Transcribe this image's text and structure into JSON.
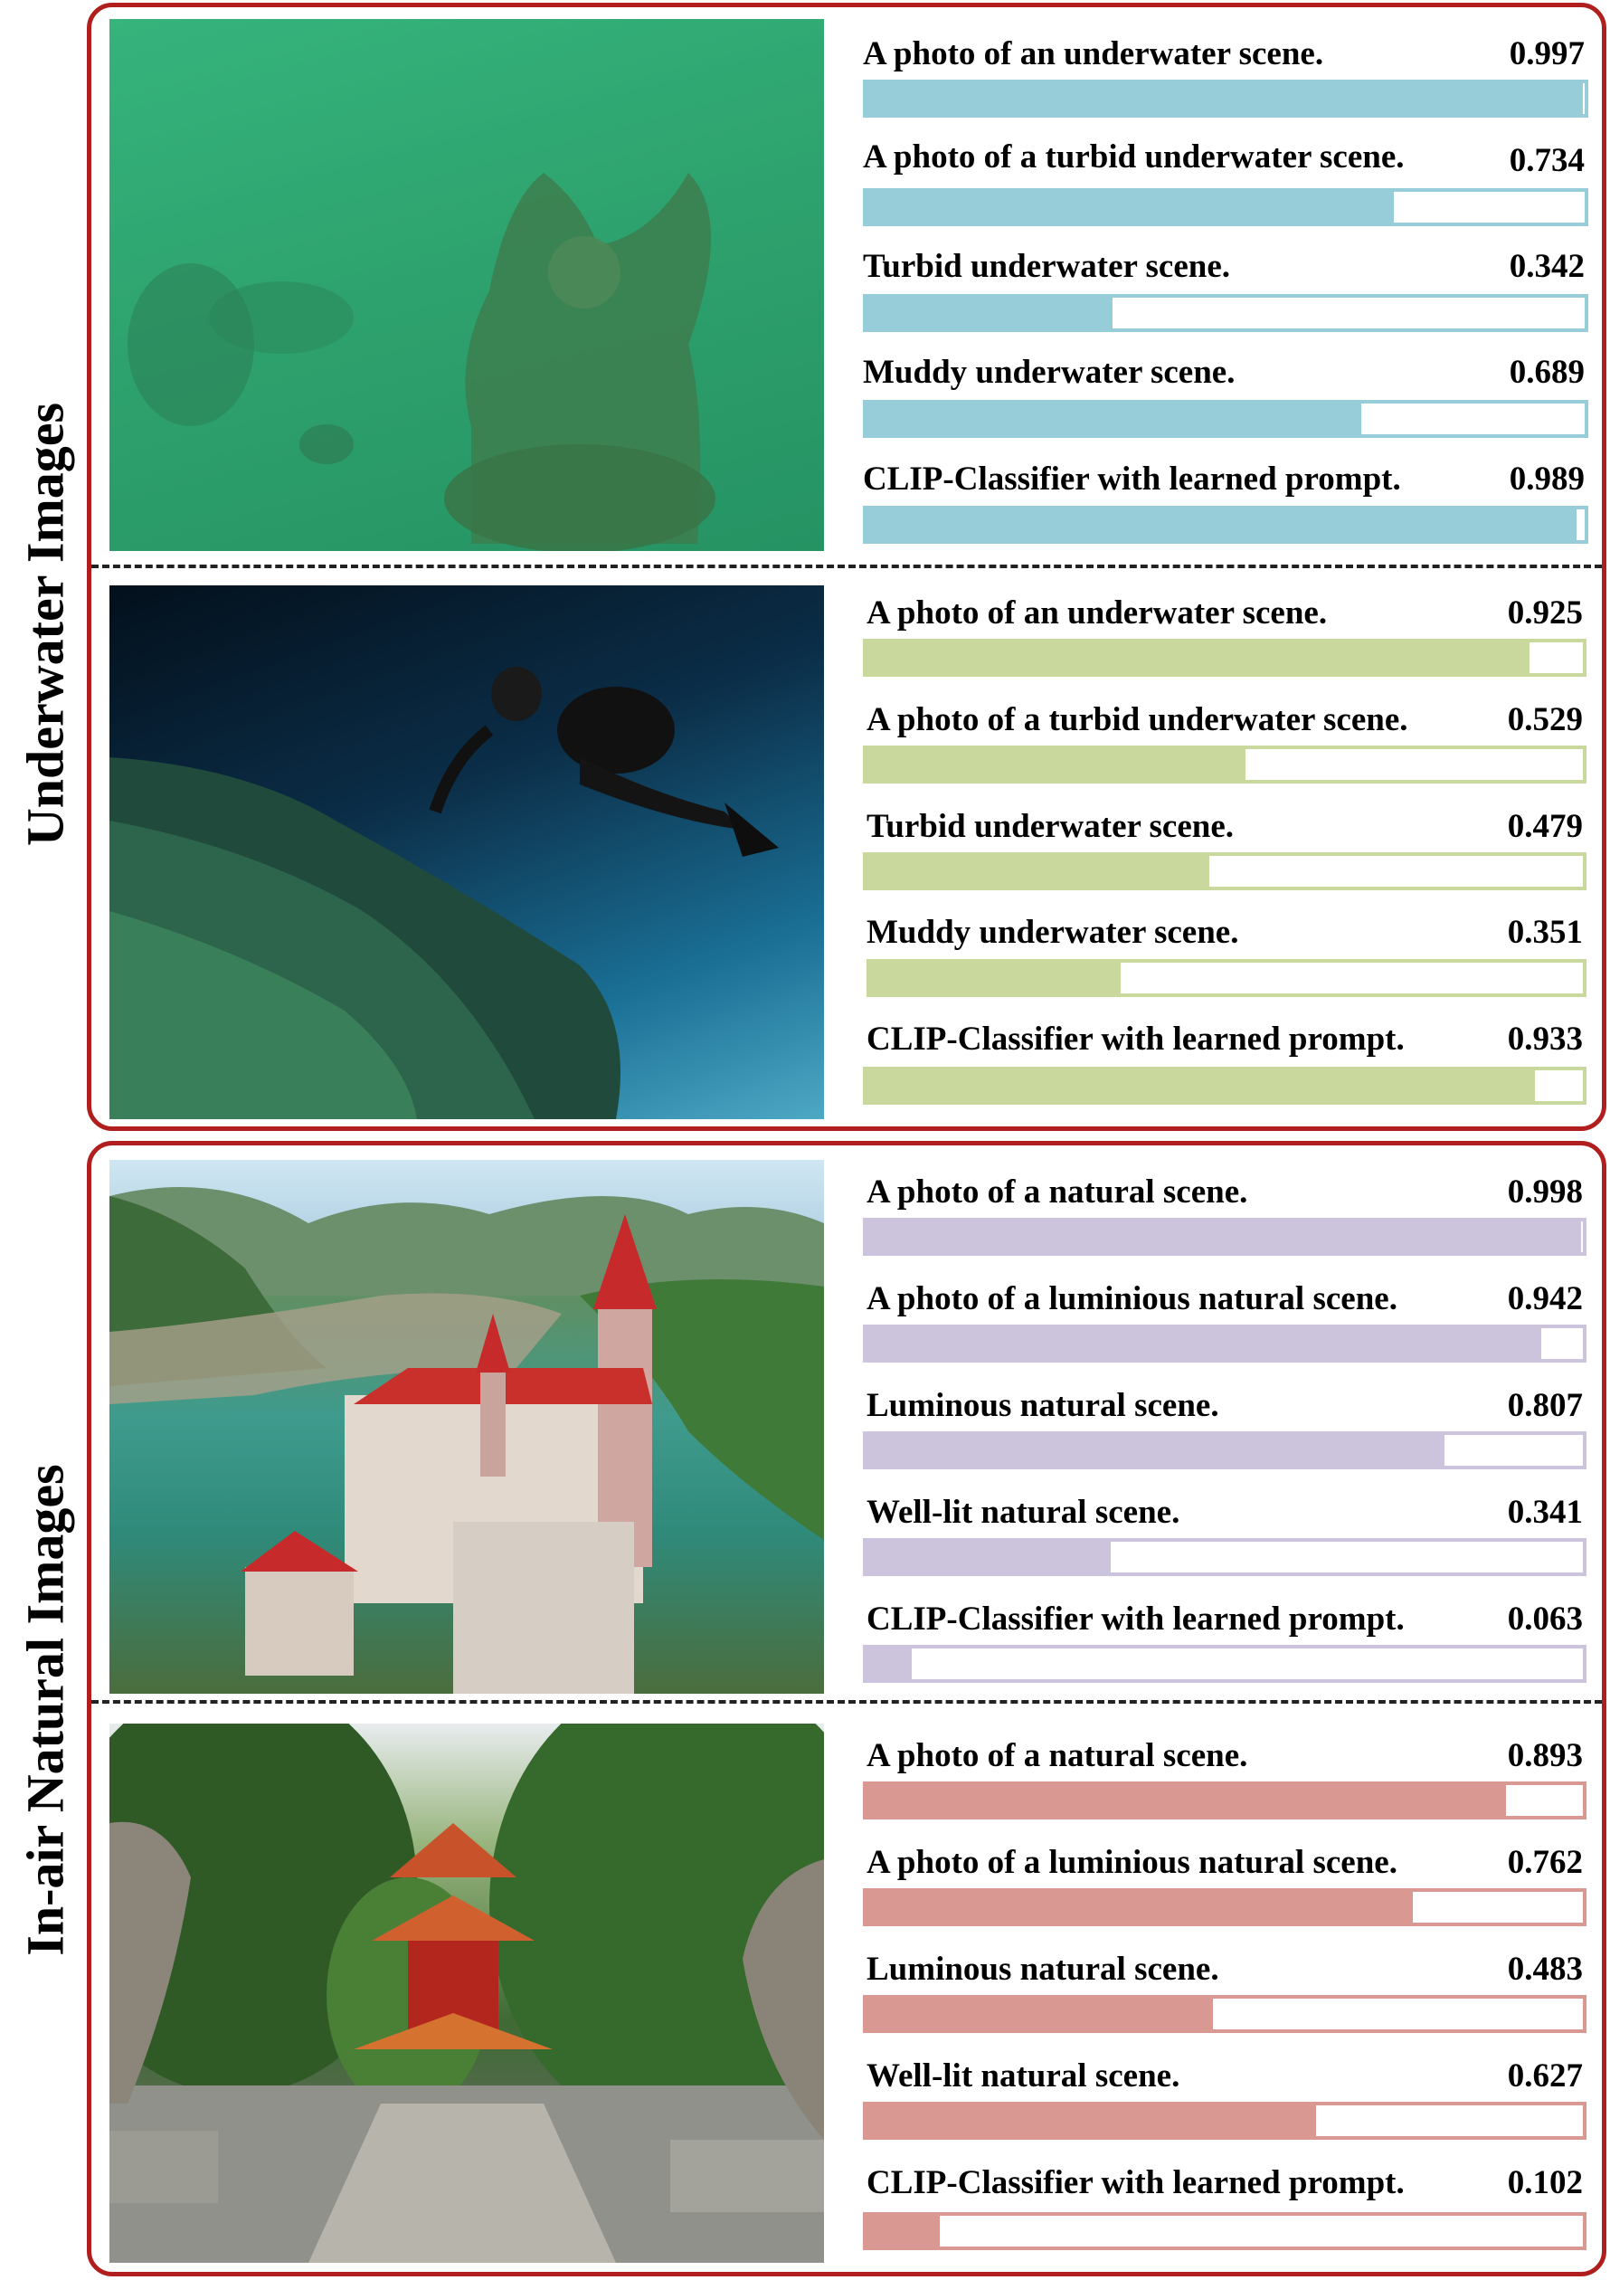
{
  "chart_data": {
    "type": "bar",
    "orientation": "horizontal",
    "xlim": [
      0,
      1
    ],
    "groups": [
      {
        "title": "Underwater Images",
        "panels": [
          {
            "image": "turbid-green-underwater-statue",
            "color": "#96cdd9",
            "bars": [
              {
                "label": "A photo of an underwater scene.",
                "value": 0.997,
                "value_label": "0.997"
              },
              {
                "label": "A photo of a turbid underwater scene.",
                "value": 0.734,
                "value_label": "0.734"
              },
              {
                "label": "Turbid underwater scene.",
                "value": 0.342,
                "value_label": "0.342"
              },
              {
                "label": "Muddy underwater scene.",
                "value": 0.689,
                "value_label": "0.689"
              },
              {
                "label": "CLIP-Classifier with learned prompt.",
                "value": 0.989,
                "value_label": "0.989"
              }
            ]
          },
          {
            "image": "scuba-diver-underwater",
            "color": "#c9d99d",
            "bars": [
              {
                "label": "A photo of an underwater scene.",
                "value": 0.925,
                "value_label": "0.925"
              },
              {
                "label": "A photo of a turbid underwater scene.",
                "value": 0.529,
                "value_label": "0.529"
              },
              {
                "label": "Turbid underwater scene.",
                "value": 0.479,
                "value_label": "0.479"
              },
              {
                "label": "Muddy underwater scene.",
                "value": 0.351,
                "value_label": "0.351"
              },
              {
                "label": "CLIP-Classifier with learned prompt.",
                "value": 0.933,
                "value_label": "0.933"
              }
            ]
          }
        ]
      },
      {
        "title": "In-air Natural Images",
        "panels": [
          {
            "image": "castle-on-lake-aerial",
            "color": "#ccc3dd",
            "bars": [
              {
                "label": "A photo of a natural scene.",
                "value": 0.998,
                "value_label": "0.998"
              },
              {
                "label": "A photo of a luminious natural scene.",
                "value": 0.942,
                "value_label": "0.942"
              },
              {
                "label": "Luminous natural scene.",
                "value": 0.807,
                "value_label": "0.807"
              },
              {
                "label": "Well-lit natural scene.",
                "value": 0.341,
                "value_label": "0.341"
              },
              {
                "label": "CLIP-Classifier with learned prompt.",
                "value": 0.063,
                "value_label": "0.063"
              }
            ]
          },
          {
            "image": "pagoda-in-forest",
            "color": "#da9893",
            "bars": [
              {
                "label": "A photo of a natural scene.",
                "value": 0.893,
                "value_label": "0.893"
              },
              {
                "label": "A photo of a luminious natural scene.",
                "value": 0.762,
                "value_label": "0.762"
              },
              {
                "label": "Luminous natural scene.",
                "value": 0.483,
                "value_label": "0.483"
              },
              {
                "label": "Well-lit natural scene.",
                "value": 0.627,
                "value_label": "0.627"
              },
              {
                "label": "CLIP-Classifier with learned prompt.",
                "value": 0.102,
                "value_label": "0.102"
              }
            ]
          }
        ]
      }
    ]
  },
  "colors": {
    "frame": "#b01e1e",
    "dash": "#222222",
    "text": "#000000"
  }
}
